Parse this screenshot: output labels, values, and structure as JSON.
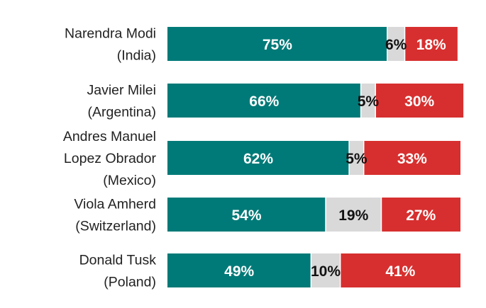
{
  "chart_data": {
    "type": "bar",
    "orientation": "horizontal",
    "stacked": true,
    "legend": "none",
    "grid": false,
    "xlim": [
      0,
      100
    ],
    "categories": [
      [
        "Narendra Modi",
        "(India)"
      ],
      [
        "Javier Milei",
        "(Argentina)"
      ],
      [
        "Andres Manuel",
        "Lopez Obrador",
        "(Mexico)"
      ],
      [
        "Viola Amherd",
        "(Switzerland)"
      ],
      [
        "Donald Tusk",
        "(Poland)"
      ]
    ],
    "series": [
      {
        "values": [
          75,
          66,
          62,
          54,
          49
        ],
        "color": "#007a78",
        "label_color": "#ffffff"
      },
      {
        "values": [
          6,
          5,
          5,
          19,
          10
        ],
        "color": "#d9d9d9",
        "label_color": "#111111"
      },
      {
        "values": [
          18,
          30,
          33,
          27,
          41
        ],
        "color": "#d72f2f",
        "label_color": "#ffffff"
      }
    ],
    "value_labels": [
      [
        "75%",
        "66%",
        "62%",
        "54%",
        "49%"
      ],
      [
        "6%",
        "5%",
        "5%",
        "19%",
        "10%"
      ],
      [
        "18%",
        "30%",
        "33%",
        "27%",
        "41%"
      ]
    ]
  }
}
